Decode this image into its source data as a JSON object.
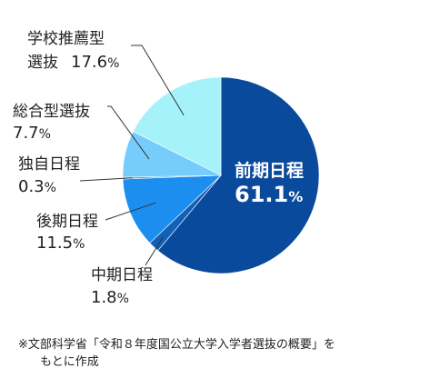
{
  "chart_data": {
    "type": "pie",
    "categories": [
      "前期日程",
      "中期日程",
      "後期日程",
      "独自日程",
      "総合型選抜",
      "学校推薦型選抜"
    ],
    "values": [
      61.1,
      1.8,
      11.5,
      0.3,
      7.7,
      17.6
    ],
    "colors": [
      "#0a4a9c",
      "#1260b8",
      "#1b8ef0",
      "#3aa6f7",
      "#76cdfb",
      "#a6f2fb"
    ],
    "labels": [
      {
        "name_lines": [
          "前期日程"
        ],
        "pct": "61.1",
        "sign": "%"
      },
      {
        "name_lines": [
          "中期日程"
        ],
        "pct": "1.8",
        "sign": "%"
      },
      {
        "name_lines": [
          "後期日程"
        ],
        "pct": "11.5",
        "sign": "%"
      },
      {
        "name_lines": [
          "独自日程"
        ],
        "pct": "0.3",
        "sign": "%"
      },
      {
        "name_lines": [
          "総合型選抜"
        ],
        "pct": "7.7",
        "sign": "%"
      },
      {
        "name_lines": [
          "学校推薦型",
          "選抜"
        ],
        "pct": "17.6",
        "sign": "%"
      }
    ]
  },
  "footnote": {
    "line1": "※文部科学省「令和８年度国公立大学入学者選抜の概要」を",
    "line2": "もとに作成"
  }
}
